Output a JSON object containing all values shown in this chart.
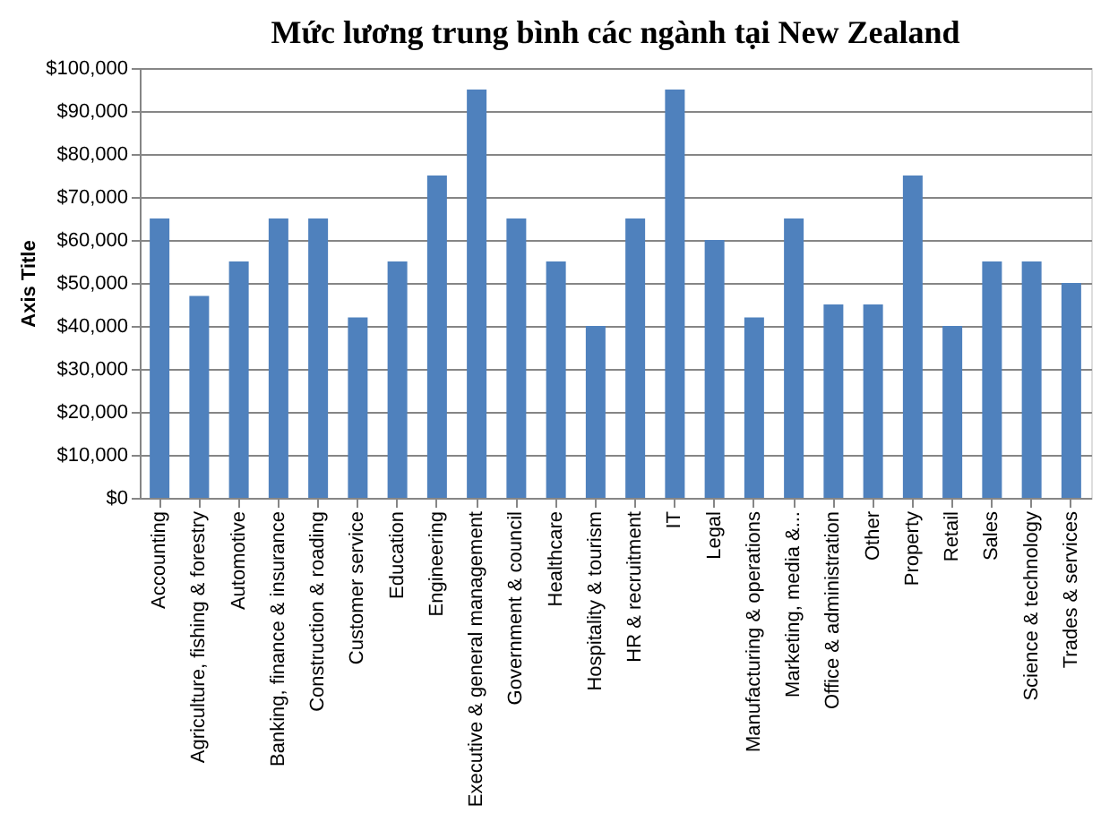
{
  "chart_data": {
    "type": "bar",
    "title": "Mức lương trung bình  các ngành tại New Zealand",
    "ylabel": "Axis Title",
    "categories": [
      "Accounting",
      "Agriculture, fishing & forestry",
      "Automotive",
      "Banking, finance & insurance",
      "Construction & roading",
      "Customer service",
      "Education",
      "Engineering",
      "Executive & general management",
      "Government & council",
      "Healthcare",
      "Hospitality & tourism",
      "HR & recruitment",
      "IT",
      "Legal",
      "Manufacturing & operations",
      "Marketing, media &...",
      "Office & administration",
      "Other",
      "Property",
      "Retail",
      "Sales",
      "Science & technology",
      "Trades & services"
    ],
    "values": [
      65000,
      47000,
      55000,
      65000,
      65000,
      42000,
      55000,
      75000,
      95000,
      65000,
      55000,
      40000,
      65000,
      95000,
      60000,
      42000,
      65000,
      45000,
      45000,
      75000,
      40000,
      55000,
      55000,
      50000
    ],
    "color": "#4f81bd",
    "ylim": [
      0,
      100000
    ],
    "yticks": [
      {
        "value": 0,
        "label": "$0"
      },
      {
        "value": 10000,
        "label": "$10,000"
      },
      {
        "value": 20000,
        "label": "$20,000"
      },
      {
        "value": 30000,
        "label": "$30,000"
      },
      {
        "value": 40000,
        "label": "$40,000"
      },
      {
        "value": 50000,
        "label": "$50,000"
      },
      {
        "value": 60000,
        "label": "$60,000"
      },
      {
        "value": 70000,
        "label": "$70,000"
      },
      {
        "value": 80000,
        "label": "$80,000"
      },
      {
        "value": 90000,
        "label": "$90,000"
      },
      {
        "value": 100000,
        "label": "$100,000"
      }
    ],
    "grid": "y"
  }
}
